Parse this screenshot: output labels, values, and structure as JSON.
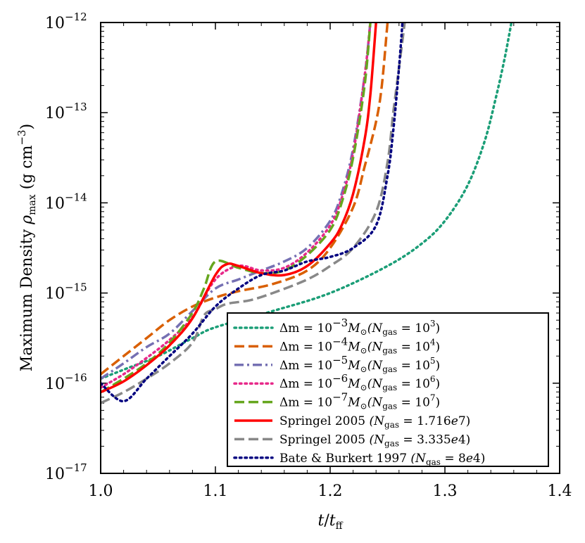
{
  "chart_data": {
    "type": "line",
    "xlabel": "t/t_ff",
    "ylabel": "Maximum Density ρ_max (g cm^-3)",
    "ylabel_parts": {
      "main": "Maximum Density ",
      "rho": "ρ",
      "rho_sub": "max",
      "unit_open": " (g cm",
      "unit_exp": "−3",
      "unit_close": ")"
    },
    "xlabel_parts": {
      "t": "t",
      "slash": "/",
      "tff": "t",
      "tff_sub": "ff"
    },
    "xlim": [
      1.0,
      1.4
    ],
    "ylim_log10": [
      -17,
      -12
    ],
    "yscale": "log",
    "xticks": [
      1.0,
      1.1,
      1.2,
      1.3,
      1.4
    ],
    "xtick_labels": [
      "1.0",
      "1.1",
      "1.2",
      "1.3",
      "1.4"
    ],
    "yticks": [
      {
        "exp": -12,
        "base": "10",
        "sup": "−12"
      },
      {
        "exp": -13,
        "base": "10",
        "sup": "−13"
      },
      {
        "exp": -14,
        "base": "10",
        "sup": "−14"
      },
      {
        "exp": -15,
        "base": "10",
        "sup": "−15"
      },
      {
        "exp": -16,
        "base": "10",
        "sup": "−16"
      },
      {
        "exp": -17,
        "base": "10",
        "sup": "−17"
      }
    ],
    "legend_position": "lower-right",
    "series": [
      {
        "name": "Δm = 10^-3 M☉ (N_gas = 10^3)",
        "color": "#1b9e77",
        "style": "dotted",
        "label": {
          "pre": "Δm = 10",
          "sup": "−3",
          "mid": "M",
          "sun": "⊙",
          "open": "(N",
          "sub": "gas",
          "eq": " = 10",
          "sup2": "3",
          "close": ")"
        },
        "x": [
          1.0,
          1.02,
          1.05,
          1.08,
          1.1,
          1.15,
          1.2,
          1.25,
          1.28,
          1.3,
          1.32,
          1.335,
          1.345,
          1.352,
          1.358
        ],
        "log_y": [
          -15.95,
          -15.85,
          -15.7,
          -15.5,
          -15.38,
          -15.2,
          -15.0,
          -14.7,
          -14.45,
          -14.2,
          -13.8,
          -13.3,
          -12.8,
          -12.4,
          -12.0
        ]
      },
      {
        "name": "Δm = 10^-4 M☉ (N_gas = 10^4)",
        "color": "#d95f02",
        "style": "dashed",
        "label": {
          "pre": "Δm = 10",
          "sup": "−4",
          "mid": "M",
          "sun": "⊙",
          "open": "(N",
          "sub": "gas",
          "eq": " = 10",
          "sup2": "4",
          "close": ")"
        },
        "x": [
          1.0,
          1.02,
          1.04,
          1.06,
          1.08,
          1.1,
          1.12,
          1.15,
          1.18,
          1.2,
          1.22,
          1.23,
          1.24,
          1.245,
          1.25
        ],
        "log_y": [
          -15.9,
          -15.7,
          -15.5,
          -15.3,
          -15.15,
          -15.05,
          -14.98,
          -14.9,
          -14.75,
          -14.5,
          -14.05,
          -13.6,
          -13.1,
          -12.7,
          -12.0
        ]
      },
      {
        "name": "Δm = 10^-5 M☉ (N_gas = 10^5)",
        "color": "#7570b3",
        "style": "dashdot",
        "label": {
          "pre": "Δm = 10",
          "sup": "−5",
          "mid": "M",
          "sun": "⊙",
          "open": "(N",
          "sub": "gas",
          "eq": " = 10",
          "sup2": "5",
          "close": ")"
        },
        "x": [
          1.0,
          1.02,
          1.04,
          1.06,
          1.08,
          1.1,
          1.12,
          1.14,
          1.16,
          1.18,
          1.2,
          1.21,
          1.22,
          1.23,
          1.235
        ],
        "log_y": [
          -15.95,
          -15.78,
          -15.6,
          -15.45,
          -15.2,
          -14.95,
          -14.85,
          -14.75,
          -14.65,
          -14.5,
          -14.2,
          -13.9,
          -13.4,
          -12.6,
          -12.0
        ]
      },
      {
        "name": "Δm = 10^-6 M☉ (N_gas = 10^6)",
        "color": "#e7298a",
        "style": "dotted",
        "label": {
          "pre": "Δm = 10",
          "sup": "−6",
          "mid": "M",
          "sun": "⊙",
          "open": "(N",
          "sub": "gas",
          "eq": " = 10",
          "sup2": "6",
          "close": ")"
        },
        "x": [
          1.0,
          1.02,
          1.04,
          1.06,
          1.08,
          1.1,
          1.12,
          1.14,
          1.16,
          1.18,
          1.2,
          1.21,
          1.22,
          1.23,
          1.235
        ],
        "log_y": [
          -16.05,
          -15.9,
          -15.72,
          -15.52,
          -15.27,
          -14.85,
          -14.7,
          -14.75,
          -14.72,
          -14.55,
          -14.25,
          -13.95,
          -13.45,
          -12.6,
          -12.0
        ]
      },
      {
        "name": "Δm = 10^-7 M☉ (N_gas = 10^7)",
        "color": "#66a61e",
        "style": "dashed",
        "label": {
          "pre": "Δm = 10",
          "sup": "−7",
          "mid": "M",
          "sun": "⊙",
          "open": "(N",
          "sub": "gas",
          "eq": " = 10",
          "sup2": "7",
          "close": ")"
        },
        "x": [
          1.0,
          1.02,
          1.04,
          1.06,
          1.08,
          1.09,
          1.1,
          1.12,
          1.14,
          1.16,
          1.18,
          1.2,
          1.21,
          1.22,
          1.23,
          1.235
        ],
        "log_y": [
          -16.1,
          -15.95,
          -15.78,
          -15.55,
          -15.22,
          -14.95,
          -14.65,
          -14.72,
          -14.78,
          -14.75,
          -14.58,
          -14.3,
          -14.0,
          -13.5,
          -12.7,
          -12.0
        ]
      },
      {
        "name": "Springel 2005 (N_gas = 1.716e7)",
        "color": "#ff0000",
        "style": "solid",
        "label": {
          "pre": "Springel 2005 ",
          "open": "(N",
          "sub": "gas",
          "eq": " = 1.716",
          "e": "e",
          "tail": "7)"
        },
        "x": [
          1.0,
          1.02,
          1.04,
          1.06,
          1.08,
          1.1,
          1.11,
          1.12,
          1.14,
          1.16,
          1.18,
          1.2,
          1.21,
          1.22,
          1.23,
          1.235,
          1.24
        ],
        "log_y": [
          -16.1,
          -15.98,
          -15.8,
          -15.58,
          -15.28,
          -14.8,
          -14.68,
          -14.7,
          -14.78,
          -14.8,
          -14.7,
          -14.45,
          -14.25,
          -13.9,
          -13.3,
          -12.8,
          -12.0
        ]
      },
      {
        "name": "Springel 2005 (N_gas = 3.335e4)",
        "color": "#888888",
        "style": "dashed",
        "label": {
          "pre": "Springel 2005 ",
          "open": "(N",
          "sub": "gas",
          "eq": " = 3.335",
          "e": "e",
          "tail": "4)"
        },
        "x": [
          1.0,
          1.02,
          1.04,
          1.06,
          1.08,
          1.09,
          1.1,
          1.11,
          1.13,
          1.15,
          1.18,
          1.2,
          1.22,
          1.24,
          1.25,
          1.255,
          1.26,
          1.265
        ],
        "log_y": [
          -16.22,
          -16.1,
          -15.95,
          -15.78,
          -15.55,
          -15.25,
          -15.18,
          -15.12,
          -15.08,
          -15.0,
          -14.85,
          -14.7,
          -14.5,
          -14.1,
          -13.55,
          -13.0,
          -12.5,
          -12.0
        ]
      },
      {
        "name": "Bate & Burkert 1997 (N_gas = 8e4)",
        "color": "#000080",
        "style": "dotted",
        "label": {
          "pre": "Bate & Burkert 1997 ",
          "open": "(N",
          "sub": "gas",
          "eq": " = 8",
          "e": "e",
          "tail": "4)"
        },
        "x": [
          1.0,
          1.02,
          1.04,
          1.06,
          1.08,
          1.1,
          1.12,
          1.14,
          1.16,
          1.18,
          1.2,
          1.22,
          1.24,
          1.25,
          1.255,
          1.26,
          1.263
        ],
        "log_y": [
          -16.0,
          -16.2,
          -15.95,
          -15.7,
          -15.45,
          -15.15,
          -14.95,
          -14.8,
          -14.75,
          -14.65,
          -14.6,
          -14.5,
          -14.25,
          -13.7,
          -13.2,
          -12.5,
          -12.0
        ]
      }
    ]
  }
}
